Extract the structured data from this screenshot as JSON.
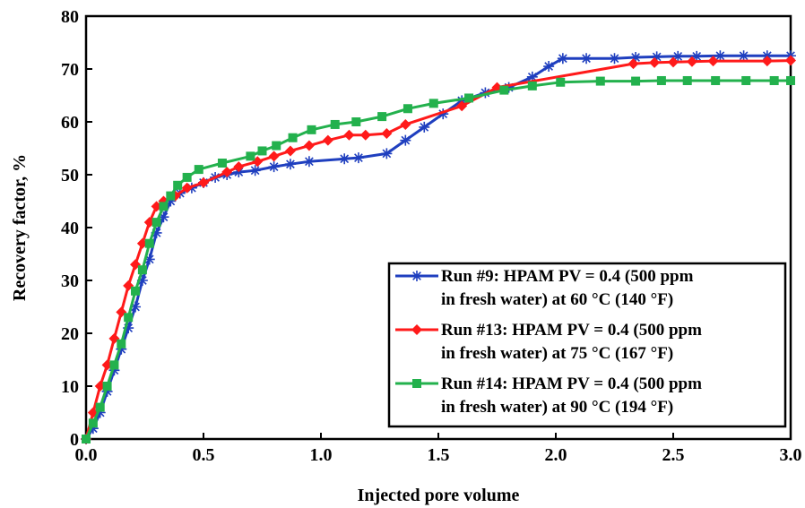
{
  "chart_data": {
    "type": "line",
    "title": "",
    "xlabel": "Injected pore volume",
    "ylabel": "Recovery factor, %",
    "xlim": [
      0,
      3
    ],
    "ylim": [
      0,
      80
    ],
    "x_ticks": [
      "0.0",
      "0.5",
      "1.0",
      "1.5",
      "2.0",
      "2.5",
      "3.0"
    ],
    "y_ticks": [
      "0",
      "10",
      "20",
      "30",
      "40",
      "50",
      "60",
      "70",
      "80"
    ],
    "legend_position": "bottom-right",
    "series": [
      {
        "legend_lines": [
          "Run #9: HPAM PV = 0.4 (500 ppm",
          "in fresh water) at 60 °C (140 °F)"
        ],
        "color": "#1f3fbf",
        "marker": "asterisk",
        "x": [
          0,
          0.03,
          0.06,
          0.09,
          0.12,
          0.15,
          0.18,
          0.21,
          0.24,
          0.27,
          0.3,
          0.33,
          0.36,
          0.4,
          0.45,
          0.5,
          0.55,
          0.6,
          0.65,
          0.72,
          0.8,
          0.87,
          0.95,
          1.1,
          1.16,
          1.28,
          1.36,
          1.44,
          1.52,
          1.6,
          1.7,
          1.8,
          1.9,
          1.97,
          2.03,
          2.13,
          2.25,
          2.34,
          2.43,
          2.52,
          2.6,
          2.7,
          2.8,
          2.9,
          3.0
        ],
        "y": [
          0,
          2,
          5,
          9,
          13,
          17,
          21,
          25,
          30,
          34,
          39,
          42,
          45,
          46.5,
          47.5,
          48.5,
          49.5,
          50,
          50.5,
          50.8,
          51.5,
          52,
          52.5,
          53,
          53.2,
          54,
          56.5,
          59,
          61.5,
          64,
          65.5,
          66.5,
          68.5,
          70.5,
          72,
          72,
          72,
          72.2,
          72.3,
          72.4,
          72.4,
          72.5,
          72.5,
          72.5,
          72.5
        ]
      },
      {
        "legend_lines": [
          "Run #13: HPAM PV = 0.4 (500 ppm",
          "in fresh water) at 75 °C (167 °F)"
        ],
        "color": "#ff1a1a",
        "marker": "diamond",
        "x": [
          0,
          0.03,
          0.06,
          0.09,
          0.12,
          0.15,
          0.18,
          0.21,
          0.24,
          0.27,
          0.3,
          0.33,
          0.38,
          0.43,
          0.5,
          0.6,
          0.65,
          0.73,
          0.8,
          0.87,
          0.95,
          1.03,
          1.12,
          1.19,
          1.28,
          1.36,
          1.6,
          1.75,
          2.33,
          2.42,
          2.5,
          2.58,
          2.67,
          2.9,
          3.0
        ],
        "y": [
          0,
          5,
          10,
          14,
          19,
          24,
          29,
          33,
          37,
          41,
          44,
          45,
          46,
          47.5,
          48.5,
          50.5,
          51.5,
          52.5,
          53.5,
          54.5,
          55.5,
          56.5,
          57.5,
          57.5,
          57.8,
          59.5,
          63,
          66.5,
          71,
          71.2,
          71.3,
          71.4,
          71.5,
          71.5,
          71.6
        ]
      },
      {
        "legend_lines": [
          "Run #14: HPAM PV = 0.4 (500 ppm",
          "in fresh water) at 90 °C (194 °F)"
        ],
        "color": "#23b14d",
        "marker": "square",
        "x": [
          0,
          0.03,
          0.06,
          0.09,
          0.12,
          0.15,
          0.18,
          0.21,
          0.24,
          0.27,
          0.3,
          0.33,
          0.36,
          0.39,
          0.43,
          0.48,
          0.58,
          0.7,
          0.75,
          0.81,
          0.88,
          0.96,
          1.06,
          1.15,
          1.26,
          1.37,
          1.48,
          1.63,
          1.78,
          1.9,
          2.02,
          2.19,
          2.34,
          2.45,
          2.56,
          2.68,
          2.81,
          2.93,
          3.0
        ],
        "y": [
          0,
          3,
          6,
          10,
          14,
          18,
          23,
          28,
          32,
          37,
          41,
          44,
          46,
          48,
          49.5,
          51,
          52.2,
          53.5,
          54.5,
          55.5,
          57,
          58.5,
          59.5,
          60,
          61,
          62.5,
          63.5,
          64.5,
          66,
          66.8,
          67.5,
          67.7,
          67.7,
          67.8,
          67.8,
          67.8,
          67.8,
          67.8,
          67.8
        ]
      }
    ]
  }
}
